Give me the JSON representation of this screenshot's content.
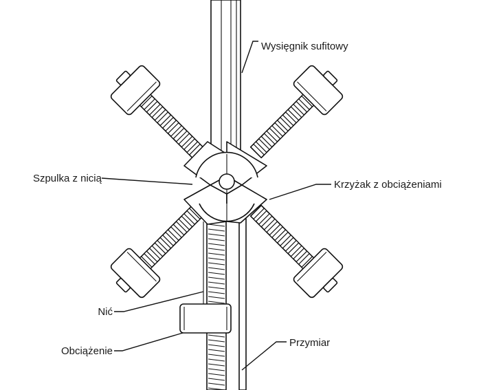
{
  "labels": {
    "boom": "Wysięgnik sufitowy",
    "spool": "Szpulka z nicią",
    "cross": "Krzyżak z obciążeniami",
    "thread": "Nić",
    "weight": "Obciążenie",
    "ruler": "Przymiar"
  },
  "colors": {
    "stroke": "#111111",
    "background": "#ffffff"
  }
}
